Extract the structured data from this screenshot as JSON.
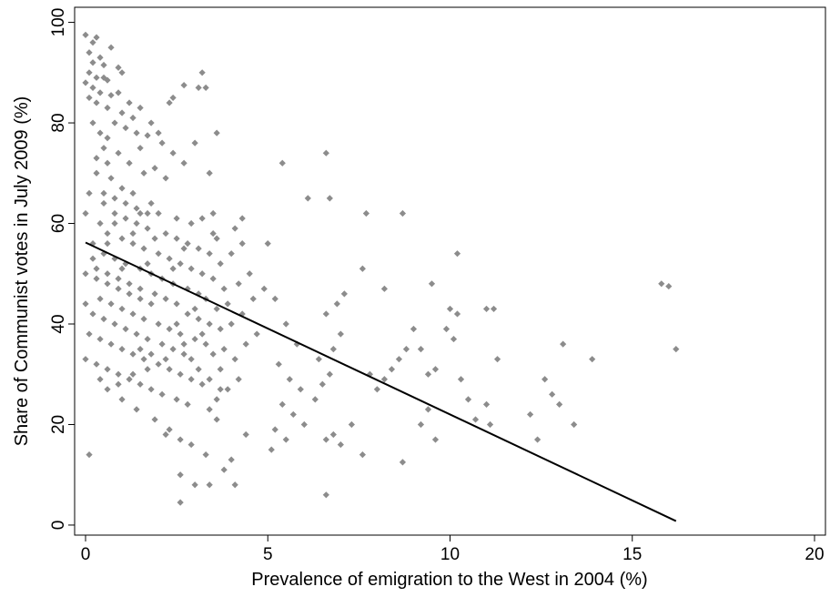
{
  "chart_data": {
    "type": "scatter",
    "title": "",
    "xlabel": "Prevalence of emigration to the West in 2004 (%)",
    "ylabel": "Share of Communist votes in July 2009 (%)",
    "xlim": [
      -0.3,
      20.3
    ],
    "ylim": [
      -2,
      103
    ],
    "xticks": [
      0,
      5,
      10,
      15,
      20
    ],
    "yticks": [
      0,
      20,
      40,
      60,
      80,
      100
    ],
    "xtick_labels": [
      "0",
      "5",
      "10",
      "15",
      "20"
    ],
    "ytick_labels": [
      "0",
      "20",
      "40",
      "60",
      "80",
      "100"
    ],
    "grid": false,
    "legend": "none",
    "colors": {
      "points": "#8c8c8c",
      "fit_line": "#000000",
      "axes": "#000000"
    },
    "series": [
      {
        "type": "scatter",
        "marker": "diamond",
        "points": [
          [
            0.0,
            97.5
          ],
          [
            0.3,
            97.0
          ],
          [
            0.1,
            94.0
          ],
          [
            0.4,
            93.0
          ],
          [
            0.2,
            92.0
          ],
          [
            0.5,
            91.5
          ],
          [
            0.1,
            90.0
          ],
          [
            0.3,
            89.0
          ],
          [
            0.6,
            88.5
          ],
          [
            0.0,
            88.0
          ],
          [
            0.2,
            87.0
          ],
          [
            0.4,
            86.0
          ],
          [
            0.7,
            85.5
          ],
          [
            0.1,
            85.0
          ],
          [
            0.3,
            84.0
          ],
          [
            0.9,
            86.0
          ],
          [
            1.2,
            84.0
          ],
          [
            1.0,
            82.0
          ],
          [
            1.5,
            83.0
          ],
          [
            1.3,
            81.0
          ],
          [
            0.8,
            80.0
          ],
          [
            1.1,
            79.0
          ],
          [
            1.4,
            78.0
          ],
          [
            0.6,
            77.0
          ],
          [
            1.7,
            77.5
          ],
          [
            2.1,
            76.0
          ],
          [
            2.4,
            74.0
          ],
          [
            2.7,
            72.0
          ],
          [
            0.2,
            80.0
          ],
          [
            0.4,
            78.0
          ],
          [
            0.5,
            75.0
          ],
          [
            0.9,
            74.0
          ],
          [
            1.2,
            72.0
          ],
          [
            1.6,
            70.0
          ],
          [
            1.9,
            71.0
          ],
          [
            2.2,
            69.0
          ],
          [
            0.3,
            70.0
          ],
          [
            0.7,
            69.0
          ],
          [
            1.0,
            67.0
          ],
          [
            1.3,
            66.0
          ],
          [
            1.8,
            64.0
          ],
          [
            2.0,
            62.0
          ],
          [
            2.5,
            61.0
          ],
          [
            2.9,
            60.0
          ],
          [
            3.2,
            61.0
          ],
          [
            3.5,
            58.0
          ],
          [
            0.1,
            66.0
          ],
          [
            0.5,
            64.0
          ],
          [
            0.8,
            62.0
          ],
          [
            1.1,
            61.0
          ],
          [
            1.4,
            60.0
          ],
          [
            1.7,
            59.0
          ],
          [
            0.0,
            62.0
          ],
          [
            0.4,
            60.0
          ],
          [
            0.6,
            58.0
          ],
          [
            1.0,
            57.0
          ],
          [
            1.3,
            56.0
          ],
          [
            1.6,
            55.0
          ],
          [
            2.0,
            54.0
          ],
          [
            2.3,
            53.0
          ],
          [
            2.6,
            52.0
          ],
          [
            0.2,
            56.0
          ],
          [
            0.5,
            54.0
          ],
          [
            0.8,
            53.0
          ],
          [
            1.1,
            52.0
          ],
          [
            1.5,
            51.0
          ],
          [
            1.8,
            50.0
          ],
          [
            2.1,
            49.0
          ],
          [
            2.4,
            48.0
          ],
          [
            2.8,
            47.0
          ],
          [
            3.1,
            46.0
          ],
          [
            0.3,
            51.0
          ],
          [
            0.6,
            50.0
          ],
          [
            0.9,
            49.0
          ],
          [
            1.2,
            48.0
          ],
          [
            1.5,
            47.0
          ],
          [
            1.9,
            46.0
          ],
          [
            2.2,
            45.0
          ],
          [
            2.5,
            44.0
          ],
          [
            0.0,
            44.0
          ],
          [
            0.4,
            45.0
          ],
          [
            0.7,
            44.0
          ],
          [
            1.0,
            43.0
          ],
          [
            1.3,
            42.0
          ],
          [
            1.6,
            41.0
          ],
          [
            2.0,
            40.0
          ],
          [
            2.3,
            39.0
          ],
          [
            2.6,
            38.0
          ],
          [
            3.0,
            37.0
          ],
          [
            3.3,
            36.0
          ],
          [
            0.2,
            42.0
          ],
          [
            0.5,
            41.0
          ],
          [
            0.8,
            40.0
          ],
          [
            1.1,
            39.0
          ],
          [
            1.4,
            38.0
          ],
          [
            1.7,
            37.0
          ],
          [
            2.1,
            36.0
          ],
          [
            2.4,
            35.0
          ],
          [
            2.7,
            34.0
          ],
          [
            0.1,
            38.0
          ],
          [
            0.4,
            37.0
          ],
          [
            0.7,
            36.0
          ],
          [
            1.0,
            35.0
          ],
          [
            1.3,
            34.0
          ],
          [
            1.6,
            33.0
          ],
          [
            2.0,
            32.0
          ],
          [
            2.3,
            31.0
          ],
          [
            2.6,
            30.0
          ],
          [
            2.9,
            29.0
          ],
          [
            3.2,
            28.0
          ],
          [
            0.0,
            33.0
          ],
          [
            0.3,
            32.0
          ],
          [
            0.6,
            31.0
          ],
          [
            0.9,
            30.0
          ],
          [
            1.2,
            29.0
          ],
          [
            1.5,
            28.0
          ],
          [
            1.8,
            27.0
          ],
          [
            2.1,
            26.0
          ],
          [
            2.5,
            25.0
          ],
          [
            2.8,
            24.0
          ],
          [
            3.4,
            23.0
          ],
          [
            3.6,
            21.0
          ],
          [
            2.3,
            19.0
          ],
          [
            2.6,
            17.0
          ],
          [
            2.9,
            16.0
          ],
          [
            3.3,
            14.0
          ],
          [
            2.6,
            10.0
          ],
          [
            3.0,
            8.0
          ],
          [
            3.4,
            8.0
          ],
          [
            2.6,
            4.5
          ],
          [
            0.1,
            14.0
          ],
          [
            1.0,
            25.0
          ],
          [
            1.4,
            23.0
          ],
          [
            1.9,
            21.0
          ],
          [
            2.2,
            18.0
          ],
          [
            3.6,
            25.0
          ],
          [
            3.9,
            27.0
          ],
          [
            4.2,
            29.0
          ],
          [
            3.7,
            31.0
          ],
          [
            4.1,
            33.0
          ],
          [
            3.8,
            35.0
          ],
          [
            4.4,
            36.0
          ],
          [
            4.7,
            38.0
          ],
          [
            4.0,
            40.0
          ],
          [
            4.3,
            42.0
          ],
          [
            3.9,
            44.0
          ],
          [
            4.6,
            45.0
          ],
          [
            4.9,
            47.0
          ],
          [
            4.2,
            48.0
          ],
          [
            4.5,
            50.0
          ],
          [
            3.7,
            52.0
          ],
          [
            4.0,
            54.0
          ],
          [
            4.3,
            56.0
          ],
          [
            3.6,
            57.0
          ],
          [
            4.1,
            59.0
          ],
          [
            4.3,
            61.0
          ],
          [
            3.5,
            62.0
          ],
          [
            3.4,
            70.0
          ],
          [
            3.3,
            87.0
          ],
          [
            3.1,
            87.0
          ],
          [
            2.7,
            87.5
          ],
          [
            3.2,
            90.0
          ],
          [
            3.6,
            78.0
          ],
          [
            2.4,
            85.0
          ],
          [
            2.3,
            84.0
          ],
          [
            3.0,
            76.0
          ],
          [
            5.0,
            56.0
          ],
          [
            5.2,
            45.0
          ],
          [
            5.5,
            40.0
          ],
          [
            5.8,
            36.0
          ],
          [
            5.3,
            32.0
          ],
          [
            5.6,
            29.0
          ],
          [
            5.9,
            27.0
          ],
          [
            5.4,
            24.0
          ],
          [
            5.7,
            22.0
          ],
          [
            6.0,
            20.0
          ],
          [
            5.2,
            19.0
          ],
          [
            5.5,
            17.0
          ],
          [
            5.1,
            15.0
          ],
          [
            4.4,
            18.0
          ],
          [
            4.0,
            13.0
          ],
          [
            3.8,
            11.0
          ],
          [
            4.1,
            8.0
          ],
          [
            6.3,
            25.0
          ],
          [
            6.5,
            28.0
          ],
          [
            6.7,
            30.0
          ],
          [
            6.4,
            33.0
          ],
          [
            6.8,
            35.0
          ],
          [
            7.0,
            38.0
          ],
          [
            6.6,
            42.0
          ],
          [
            6.9,
            44.0
          ],
          [
            7.1,
            46.0
          ],
          [
            6.6,
            17.0
          ],
          [
            6.8,
            18.0
          ],
          [
            7.0,
            16.0
          ],
          [
            7.3,
            20.0
          ],
          [
            7.6,
            14.0
          ],
          [
            6.6,
            6.0
          ],
          [
            7.8,
            30.0
          ],
          [
            8.0,
            27.0
          ],
          [
            8.2,
            29.0
          ],
          [
            8.4,
            31.0
          ],
          [
            8.6,
            33.0
          ],
          [
            8.8,
            35.0
          ],
          [
            8.2,
            47.0
          ],
          [
            8.7,
            62.0
          ],
          [
            7.7,
            62.0
          ],
          [
            7.6,
            51.0
          ],
          [
            6.6,
            74.0
          ],
          [
            6.7,
            65.0
          ],
          [
            6.1,
            65.0
          ],
          [
            5.4,
            72.0
          ],
          [
            9.0,
            39.0
          ],
          [
            9.2,
            35.0
          ],
          [
            9.4,
            30.0
          ],
          [
            9.6,
            31.0
          ],
          [
            9.2,
            20.0
          ],
          [
            9.4,
            23.0
          ],
          [
            9.6,
            17.0
          ],
          [
            8.7,
            12.5
          ],
          [
            9.5,
            48.0
          ],
          [
            10.0,
            43.0
          ],
          [
            10.2,
            42.0
          ],
          [
            9.9,
            39.0
          ],
          [
            10.1,
            37.0
          ],
          [
            10.3,
            29.0
          ],
          [
            10.5,
            25.0
          ],
          [
            10.7,
            21.0
          ],
          [
            10.2,
            54.0
          ],
          [
            11.0,
            43.0
          ],
          [
            11.2,
            43.0
          ],
          [
            11.3,
            33.0
          ],
          [
            11.0,
            24.0
          ],
          [
            11.1,
            20.0
          ],
          [
            12.2,
            22.0
          ],
          [
            12.4,
            17.0
          ],
          [
            12.6,
            29.0
          ],
          [
            12.8,
            26.0
          ],
          [
            13.0,
            24.0
          ],
          [
            13.1,
            36.0
          ],
          [
            13.4,
            20.0
          ],
          [
            13.9,
            33.0
          ],
          [
            15.8,
            48.0
          ],
          [
            16.0,
            47.5
          ],
          [
            16.2,
            35.0
          ],
          [
            0.5,
            66.0
          ],
          [
            0.8,
            65.0
          ],
          [
            1.1,
            64.0
          ],
          [
            1.4,
            63.0
          ],
          [
            1.7,
            62.0
          ],
          [
            2.2,
            58.0
          ],
          [
            2.5,
            57.0
          ],
          [
            2.8,
            56.0
          ],
          [
            3.1,
            55.0
          ],
          [
            3.4,
            54.0
          ],
          [
            2.9,
            51.0
          ],
          [
            3.2,
            50.0
          ],
          [
            3.5,
            49.0
          ],
          [
            3.8,
            47.0
          ],
          [
            3.3,
            45.0
          ],
          [
            3.6,
            43.0
          ],
          [
            3.1,
            41.0
          ],
          [
            3.4,
            40.0
          ],
          [
            3.7,
            39.0
          ],
          [
            2.8,
            42.0
          ],
          [
            2.5,
            40.0
          ],
          [
            1.8,
            44.0
          ],
          [
            1.5,
            45.0
          ],
          [
            1.2,
            46.0
          ],
          [
            0.9,
            47.0
          ],
          [
            0.6,
            48.0
          ],
          [
            0.3,
            49.0
          ],
          [
            0.0,
            50.0
          ],
          [
            0.2,
            53.0
          ],
          [
            0.6,
            56.0
          ],
          [
            1.3,
            58.0
          ],
          [
            1.9,
            57.0
          ],
          [
            2.7,
            55.0
          ],
          [
            3.0,
            43.0
          ],
          [
            2.7,
            36.0
          ],
          [
            2.9,
            33.0
          ],
          [
            3.1,
            31.0
          ],
          [
            3.4,
            29.0
          ],
          [
            3.7,
            27.0
          ],
          [
            3.5,
            34.0
          ],
          [
            3.2,
            38.0
          ],
          [
            1.7,
            31.0
          ],
          [
            1.3,
            30.0
          ],
          [
            0.9,
            28.0
          ],
          [
            0.6,
            27.0
          ],
          [
            0.4,
            29.0
          ],
          [
            1.5,
            35.0
          ],
          [
            1.8,
            34.0
          ],
          [
            2.2,
            33.0
          ],
          [
            1.0,
            51.0
          ],
          [
            1.7,
            52.0
          ],
          [
            2.4,
            51.0
          ],
          [
            0.8,
            60.0
          ],
          [
            1.5,
            62.0
          ],
          [
            0.3,
            73.0
          ],
          [
            0.6,
            72.0
          ],
          [
            1.5,
            75.0
          ],
          [
            1.8,
            80.0
          ],
          [
            2.0,
            78.0
          ],
          [
            0.7,
            95.0
          ],
          [
            0.5,
            89.0
          ],
          [
            0.9,
            91.0
          ],
          [
            1.0,
            90.0
          ],
          [
            0.2,
            96.0
          ],
          [
            0.6,
            83.0
          ]
        ]
      },
      {
        "type": "line",
        "name": "",
        "points": [
          [
            0.0,
            56.2
          ],
          [
            16.2,
            0.8
          ]
        ]
      }
    ]
  }
}
